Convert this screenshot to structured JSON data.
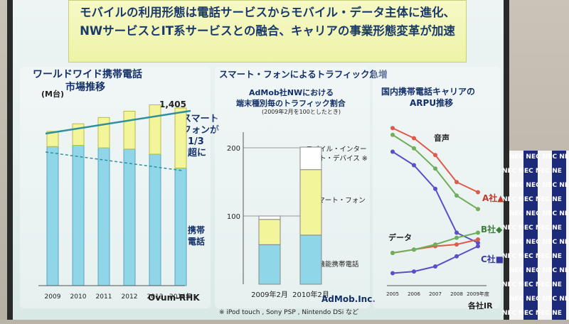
{
  "title": {
    "line1": "モバイルの利用形態は電話サービスからモバイル・データ主体に進化、",
    "line2": "NWサービスとIT系サービスとの融合、キャリアの事業形態変革が加速",
    "line3": ""
  },
  "panel1": {
    "title_line1": "ワールドワイド携帯電話",
    "title_line2": "市場推移",
    "unit": "(M台)",
    "top_value": "1,405",
    "annotation": [
      "スマート",
      "フォンが",
      "1/3",
      "超に"
    ],
    "legend_label": [
      "携帯",
      "電話"
    ],
    "source": "Ovum-RHK"
  },
  "panel2": {
    "title": "スマート・フォンによるトラフィック急増",
    "subtitle_line1": "AdMob社NWにおける",
    "subtitle_line2": "端末種別毎のトラフィック割合",
    "note": "(2009年2月を100としたとき)",
    "labels": {
      "mid": [
        "モバイル・インター",
        "ネット・デバイス ※"
      ],
      "smart": "スマート・フォン",
      "feature": "高機能携帯電話"
    },
    "source": "AdMob.Inc.",
    "footnote": "※ iPod touch , Sony PSP , Nintendo DSi など"
  },
  "panel3": {
    "title_line1": "国内携帯電話キャリアの",
    "title_line2": "ARPU推移",
    "label_voice": "音声",
    "label_data": "データ",
    "carriers": [
      "A社▲",
      "B社◆",
      "C社■"
    ],
    "source": "各社IR"
  },
  "colors": {
    "cyan": "#8fd6e8",
    "yellow": "#f2f59a",
    "a": "#e05a4a",
    "b": "#6fae5a",
    "c": "#5a4fc8"
  },
  "chart_data": [
    {
      "type": "bar",
      "categories": [
        "2009",
        "2010",
        "2011",
        "2012",
        "2013",
        "2014年"
      ],
      "series": [
        {
          "values": [
            1100,
            1110,
            1090,
            1080,
            1040,
            930
          ]
        },
        {
          "values": [
            120,
            170,
            240,
            300,
            390,
            475
          ]
        }
      ],
      "ylabel": "(M台)"
    },
    {
      "type": "bar",
      "categories": [
        "2009年2月",
        "2010年2月"
      ],
      "series": [
        {
          "name": "高機能携帯電話",
          "values": [
            58,
            72
          ]
        },
        {
          "name": "スマート・フォン",
          "values": [
            37,
            96
          ]
        },
        {
          "name": "モバイル・インターネット・デバイス ※",
          "values": [
            5,
            33
          ]
        }
      ],
      "yticks": [
        "100",
        "200"
      ]
    },
    {
      "type": "line",
      "x": [
        "2005",
        "2006",
        "2007",
        "2008",
        "2009年度"
      ],
      "series": [
        {
          "name": "A社▲ 音声",
          "values": [
            5500,
            5200,
            4700,
            3900,
            3600
          ]
        },
        {
          "name": "B社◆ 音声",
          "values": [
            5300,
            4900,
            4300,
            3500,
            3100
          ]
        },
        {
          "name": "C社■ 音声",
          "values": [
            4800,
            4400,
            3700,
            2400,
            2100
          ]
        },
        {
          "name": "A社▲ データ",
          "values": [
            1800,
            1900,
            2000,
            2050,
            2200
          ]
        },
        {
          "name": "B社◆ データ",
          "values": [
            1800,
            1900,
            2050,
            2250,
            2400
          ]
        },
        {
          "name": "C社■ データ",
          "values": [
            1200,
            1250,
            1400,
            1700,
            2000
          ]
        }
      ]
    }
  ],
  "sign": {
    "text": "NEC"
  }
}
